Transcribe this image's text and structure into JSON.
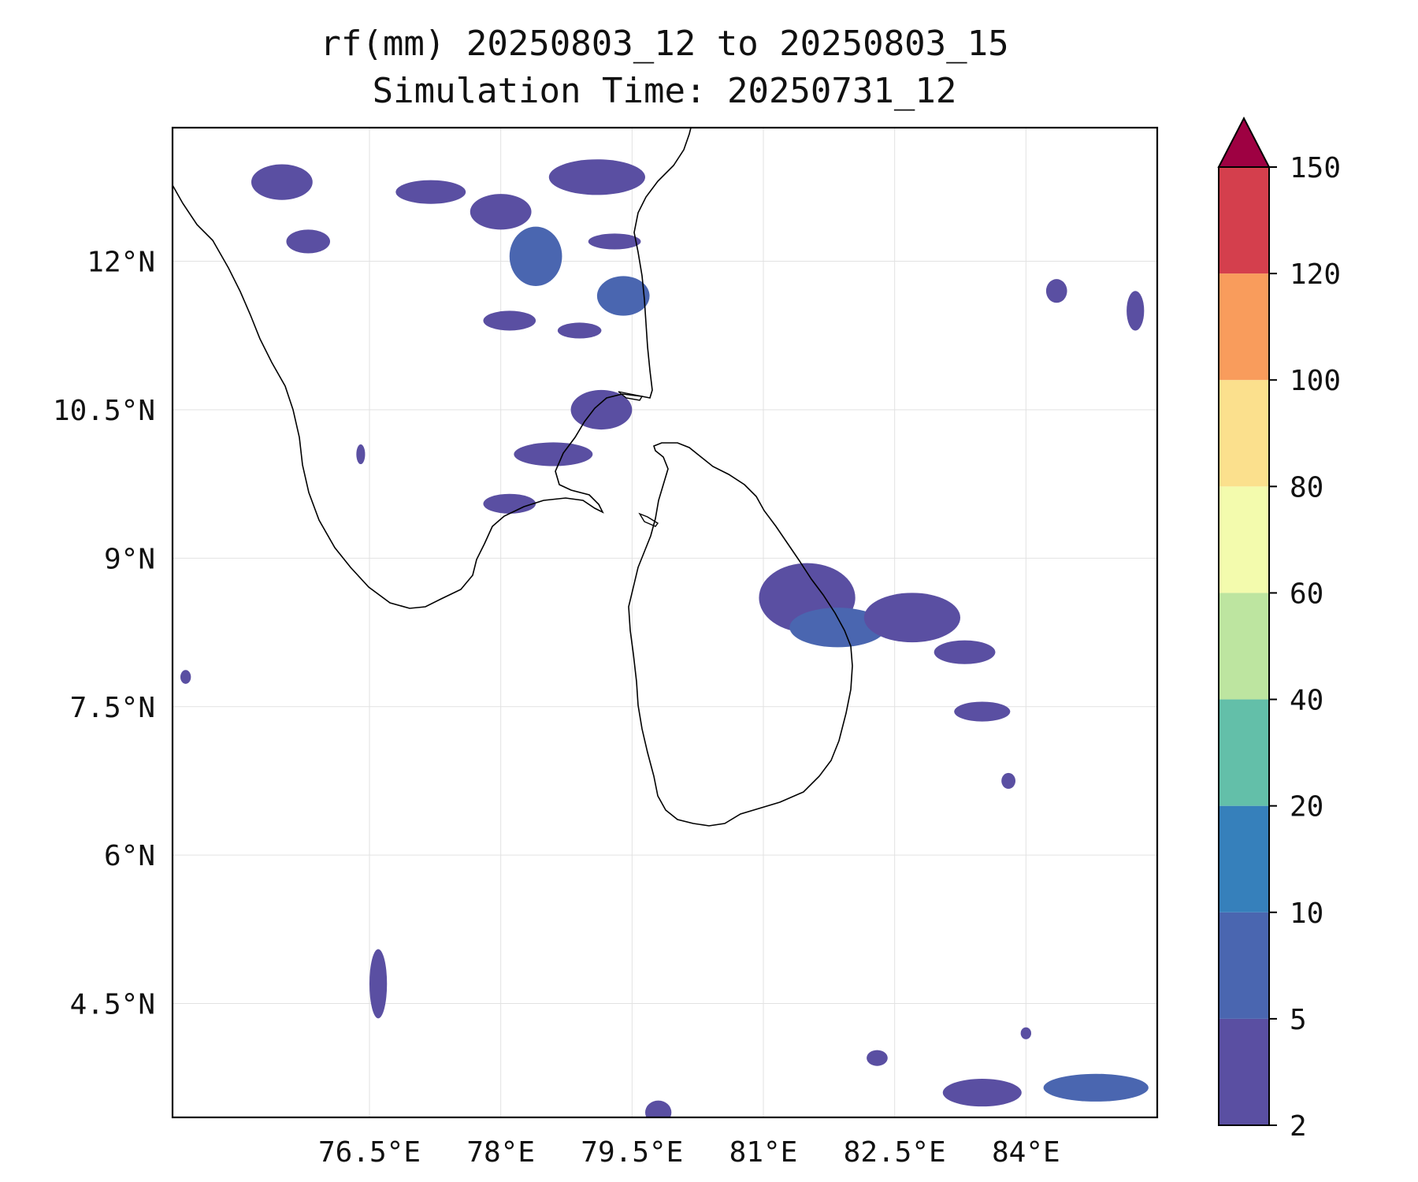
{
  "title": {
    "line1": "rf(mm) 20250803_12 to 20250803_15",
    "line2": "Simulation Time: 20250731_12"
  },
  "map": {
    "lon_range": [
      74.25,
      85.5
    ],
    "lat_range": [
      3.35,
      13.35
    ],
    "lon_ticks": [
      {
        "value": 76.5,
        "label": "76.5°E"
      },
      {
        "value": 78.0,
        "label": "78°E"
      },
      {
        "value": 79.5,
        "label": "79.5°E"
      },
      {
        "value": 81.0,
        "label": "81°E"
      },
      {
        "value": 82.5,
        "label": "82.5°E"
      },
      {
        "value": 84.0,
        "label": "84°E"
      }
    ],
    "lat_ticks": [
      {
        "value": 12.0,
        "label": "12°N"
      },
      {
        "value": 10.5,
        "label": "10.5°N"
      },
      {
        "value": 9.0,
        "label": "9°N"
      },
      {
        "value": 7.5,
        "label": "7.5°N"
      },
      {
        "value": 6.0,
        "label": "6°N"
      },
      {
        "value": 4.5,
        "label": "4.5°N"
      }
    ],
    "gridlines": true,
    "coastline_color": "#000000",
    "rain_patches": [
      {
        "lon": 75.5,
        "lat": 12.8,
        "rx": 0.35,
        "ry": 0.18,
        "level": "2-5"
      },
      {
        "lon": 75.8,
        "lat": 12.2,
        "rx": 0.25,
        "ry": 0.12,
        "level": "2-5"
      },
      {
        "lon": 77.2,
        "lat": 12.7,
        "rx": 0.4,
        "ry": 0.12,
        "level": "2-5"
      },
      {
        "lon": 78.0,
        "lat": 12.5,
        "rx": 0.35,
        "ry": 0.18,
        "level": "2-5"
      },
      {
        "lon": 78.4,
        "lat": 12.05,
        "rx": 0.3,
        "ry": 0.3,
        "level": "5-10"
      },
      {
        "lon": 79.1,
        "lat": 12.85,
        "rx": 0.55,
        "ry": 0.18,
        "level": "2-5"
      },
      {
        "lon": 79.3,
        "lat": 12.2,
        "rx": 0.3,
        "ry": 0.08,
        "level": "2-5"
      },
      {
        "lon": 79.4,
        "lat": 11.65,
        "rx": 0.3,
        "ry": 0.2,
        "level": "5-10"
      },
      {
        "lon": 78.9,
        "lat": 11.3,
        "rx": 0.25,
        "ry": 0.08,
        "level": "2-5"
      },
      {
        "lon": 78.1,
        "lat": 11.4,
        "rx": 0.3,
        "ry": 0.1,
        "level": "2-5"
      },
      {
        "lon": 79.15,
        "lat": 10.5,
        "rx": 0.35,
        "ry": 0.2,
        "level": "2-5"
      },
      {
        "lon": 78.6,
        "lat": 10.05,
        "rx": 0.45,
        "ry": 0.12,
        "level": "2-5"
      },
      {
        "lon": 78.1,
        "lat": 9.55,
        "rx": 0.3,
        "ry": 0.1,
        "level": "2-5"
      },
      {
        "lon": 76.4,
        "lat": 10.05,
        "rx": 0.05,
        "ry": 0.1,
        "level": "2-5"
      },
      {
        "lon": 81.5,
        "lat": 8.6,
        "rx": 0.55,
        "ry": 0.35,
        "level": "2-5"
      },
      {
        "lon": 81.85,
        "lat": 8.3,
        "rx": 0.55,
        "ry": 0.2,
        "level": "5-10"
      },
      {
        "lon": 82.7,
        "lat": 8.4,
        "rx": 0.55,
        "ry": 0.25,
        "level": "2-5"
      },
      {
        "lon": 83.3,
        "lat": 8.05,
        "rx": 0.35,
        "ry": 0.12,
        "level": "2-5"
      },
      {
        "lon": 83.5,
        "lat": 7.45,
        "rx": 0.32,
        "ry": 0.1,
        "level": "2-5"
      },
      {
        "lon": 84.35,
        "lat": 11.7,
        "rx": 0.12,
        "ry": 0.12,
        "level": "2-5"
      },
      {
        "lon": 85.25,
        "lat": 11.5,
        "rx": 0.1,
        "ry": 0.2,
        "level": "2-5"
      },
      {
        "lon": 83.8,
        "lat": 6.75,
        "rx": 0.08,
        "ry": 0.08,
        "level": "2-5"
      },
      {
        "lon": 76.6,
        "lat": 4.7,
        "rx": 0.1,
        "ry": 0.35,
        "level": "2-5"
      },
      {
        "lon": 83.5,
        "lat": 3.6,
        "rx": 0.45,
        "ry": 0.14,
        "level": "2-5"
      },
      {
        "lon": 84.8,
        "lat": 3.65,
        "rx": 0.6,
        "ry": 0.14,
        "level": "5-10"
      },
      {
        "lon": 79.8,
        "lat": 3.4,
        "rx": 0.15,
        "ry": 0.12,
        "level": "2-5"
      },
      {
        "lon": 82.3,
        "lat": 3.95,
        "rx": 0.12,
        "ry": 0.08,
        "level": "2-5"
      },
      {
        "lon": 84.0,
        "lat": 4.2,
        "rx": 0.06,
        "ry": 0.06,
        "level": "2-5"
      },
      {
        "lon": 74.4,
        "lat": 7.8,
        "rx": 0.06,
        "ry": 0.07,
        "level": "2-5"
      }
    ]
  },
  "colorbar": {
    "boundaries": [
      2,
      5,
      10,
      20,
      40,
      60,
      80,
      100,
      120,
      150
    ],
    "labels": [
      "2",
      "5",
      "10",
      "20",
      "40",
      "60",
      "80",
      "100",
      "120",
      "150"
    ],
    "colors": [
      "#5a4fa2",
      "#4a66b0",
      "#3680bb",
      "#63bfa9",
      "#bde5a0",
      "#f3fbad",
      "#fbe08d",
      "#f99c5c",
      "#d43f4d"
    ],
    "extend_color": "#9e0142"
  }
}
